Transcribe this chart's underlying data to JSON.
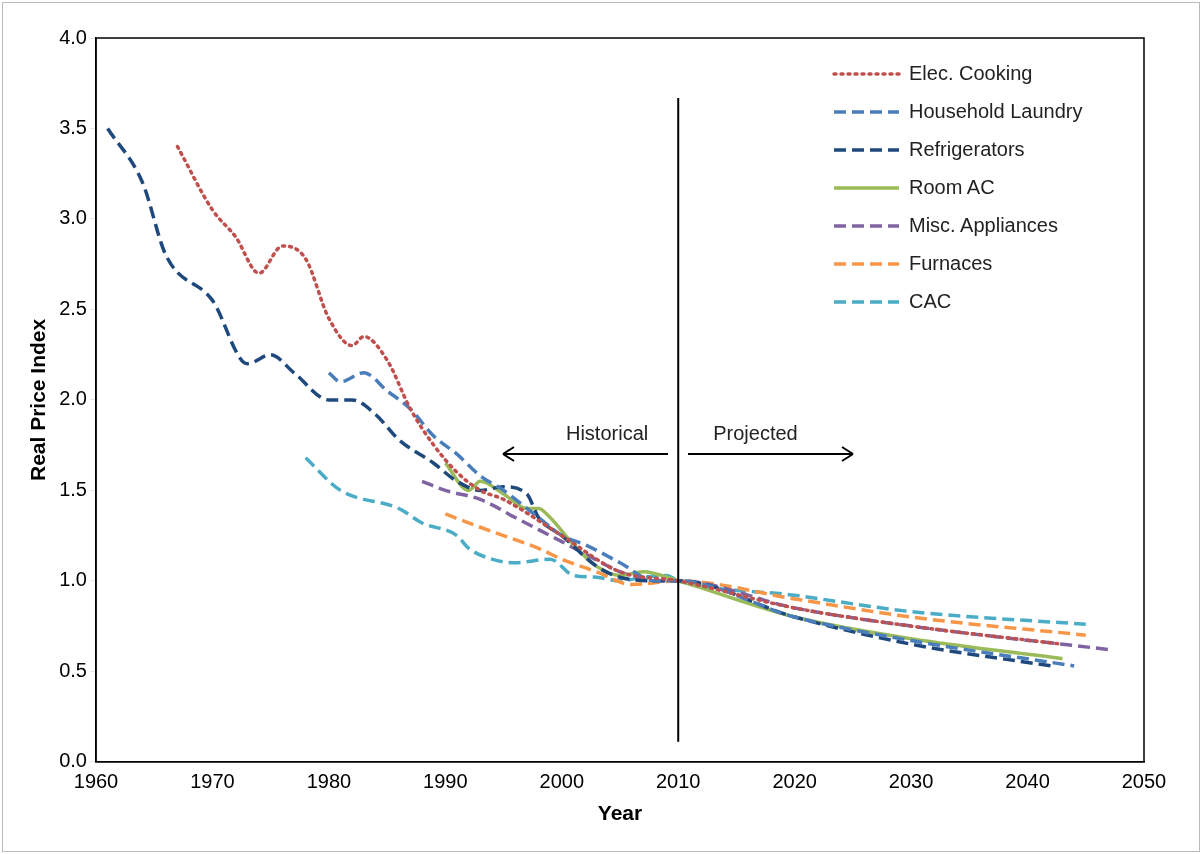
{
  "chart_data": {
    "type": "line",
    "xlabel": "Year",
    "ylabel": "Real Price Index",
    "xlim": [
      1960,
      2050
    ],
    "xticks": [
      1960,
      1970,
      1980,
      1990,
      2000,
      2010,
      2020,
      2030,
      2040,
      2050
    ],
    "ylim": [
      0,
      4
    ],
    "yticks": [
      {
        "value": 0,
        "label": "0.0"
      },
      {
        "value": 0.5,
        "label": "0.5"
      },
      {
        "value": 1,
        "label": "1.0"
      },
      {
        "value": 1.5,
        "label": "1.5"
      },
      {
        "value": 2,
        "label": "2.0"
      },
      {
        "value": 2.5,
        "label": "2.5"
      },
      {
        "value": 3,
        "label": "3.0"
      },
      {
        "value": 3.5,
        "label": "3.5"
      },
      {
        "value": 4,
        "label": "4.0"
      }
    ],
    "grid": false,
    "legend": "top right",
    "marker": "none",
    "ref_lines": [
      {
        "axis": "x",
        "value": 2010,
        "color": "#000000",
        "line_style": "solid"
      }
    ],
    "annotations": [
      "Historical",
      "Projected"
    ],
    "series": [
      {
        "name": "Elec. Cooking",
        "color": "#c0504d",
        "line_style": "dotted",
        "x": [
          1967,
          1970,
          1972,
          1974,
          1976,
          1978,
          1980,
          1982,
          1983,
          1985,
          1987,
          1989,
          1991,
          1993,
          1995,
          2000,
          2005,
          2010,
          2020,
          2030,
          2043
        ],
        "values": [
          3.4,
          3.05,
          2.9,
          2.7,
          2.85,
          2.78,
          2.45,
          2.3,
          2.35,
          2.22,
          1.95,
          1.75,
          1.6,
          1.5,
          1.45,
          1.25,
          1.05,
          1.0,
          0.85,
          0.75,
          0.65
        ]
      },
      {
        "name": "Household Laundry",
        "color": "#4a7ebb",
        "line_style": "dashed",
        "x": [
          1980,
          1981,
          1983,
          1985,
          1987,
          1989,
          1991,
          1993,
          1995,
          1998,
          2000,
          2002,
          2005,
          2008,
          2010,
          2020,
          2030,
          2044
        ],
        "values": [
          2.15,
          2.1,
          2.15,
          2.05,
          1.95,
          1.8,
          1.7,
          1.58,
          1.5,
          1.35,
          1.25,
          1.2,
          1.1,
          1.0,
          1.0,
          0.8,
          0.67,
          0.53
        ]
      },
      {
        "name": "Refrigerators",
        "color": "#1f497d",
        "line_style": "dashed",
        "x": [
          1961,
          1964,
          1966,
          1970,
          1973,
          1975,
          1977,
          1980,
          1982,
          1984,
          1986,
          1989,
          1991,
          1993,
          1995,
          1997,
          1998,
          2000,
          2003,
          2005,
          2008,
          2010,
          2020,
          2030,
          2042
        ],
        "values": [
          3.5,
          3.2,
          2.8,
          2.55,
          2.2,
          2.25,
          2.15,
          2.0,
          2.0,
          1.92,
          1.78,
          1.65,
          1.55,
          1.5,
          1.52,
          1.48,
          1.35,
          1.25,
          1.08,
          1.02,
          1.0,
          1.0,
          0.8,
          0.65,
          0.53
        ]
      },
      {
        "name": "Room AC",
        "color": "#9bbb59",
        "line_style": "solid",
        "x": [
          1990,
          1992,
          1993,
          1995,
          1997,
          1998,
          1999,
          2001,
          2003,
          2005,
          2007,
          2010,
          2020,
          2030,
          2043
        ],
        "values": [
          1.65,
          1.5,
          1.55,
          1.48,
          1.4,
          1.4,
          1.35,
          1.2,
          1.08,
          1.03,
          1.05,
          1.0,
          0.8,
          0.68,
          0.57
        ]
      },
      {
        "name": "Misc. Appliances",
        "color": "#8064a2",
        "line_style": "dashed",
        "x": [
          1988,
          1990,
          1993,
          1996,
          1999,
          2002,
          2005,
          2008,
          2010,
          2020,
          2030,
          2047
        ],
        "values": [
          1.55,
          1.5,
          1.45,
          1.35,
          1.25,
          1.15,
          1.05,
          1.0,
          1.0,
          0.85,
          0.75,
          0.62
        ]
      },
      {
        "name": "Furnaces",
        "color": "#f79646",
        "line_style": "dashed",
        "x": [
          1990,
          1992,
          1995,
          1998,
          2000,
          2003,
          2006,
          2010,
          2020,
          2030,
          2045
        ],
        "values": [
          1.37,
          1.32,
          1.25,
          1.18,
          1.12,
          1.05,
          0.98,
          1.0,
          0.9,
          0.8,
          0.7
        ]
      },
      {
        "name": "CAC",
        "color": "#4bacc6",
        "line_style": "dashed",
        "x": [
          1978,
          1981,
          1986,
          1988,
          1991,
          1992,
          1994,
          1996,
          1999,
          2001,
          2003,
          2005,
          2007,
          2009,
          2010,
          2020,
          2030,
          2045
        ],
        "values": [
          1.68,
          1.5,
          1.4,
          1.32,
          1.25,
          1.18,
          1.12,
          1.1,
          1.12,
          1.03,
          1.02,
          1.0,
          1.02,
          1.03,
          1.0,
          0.92,
          0.83,
          0.76
        ]
      }
    ]
  }
}
